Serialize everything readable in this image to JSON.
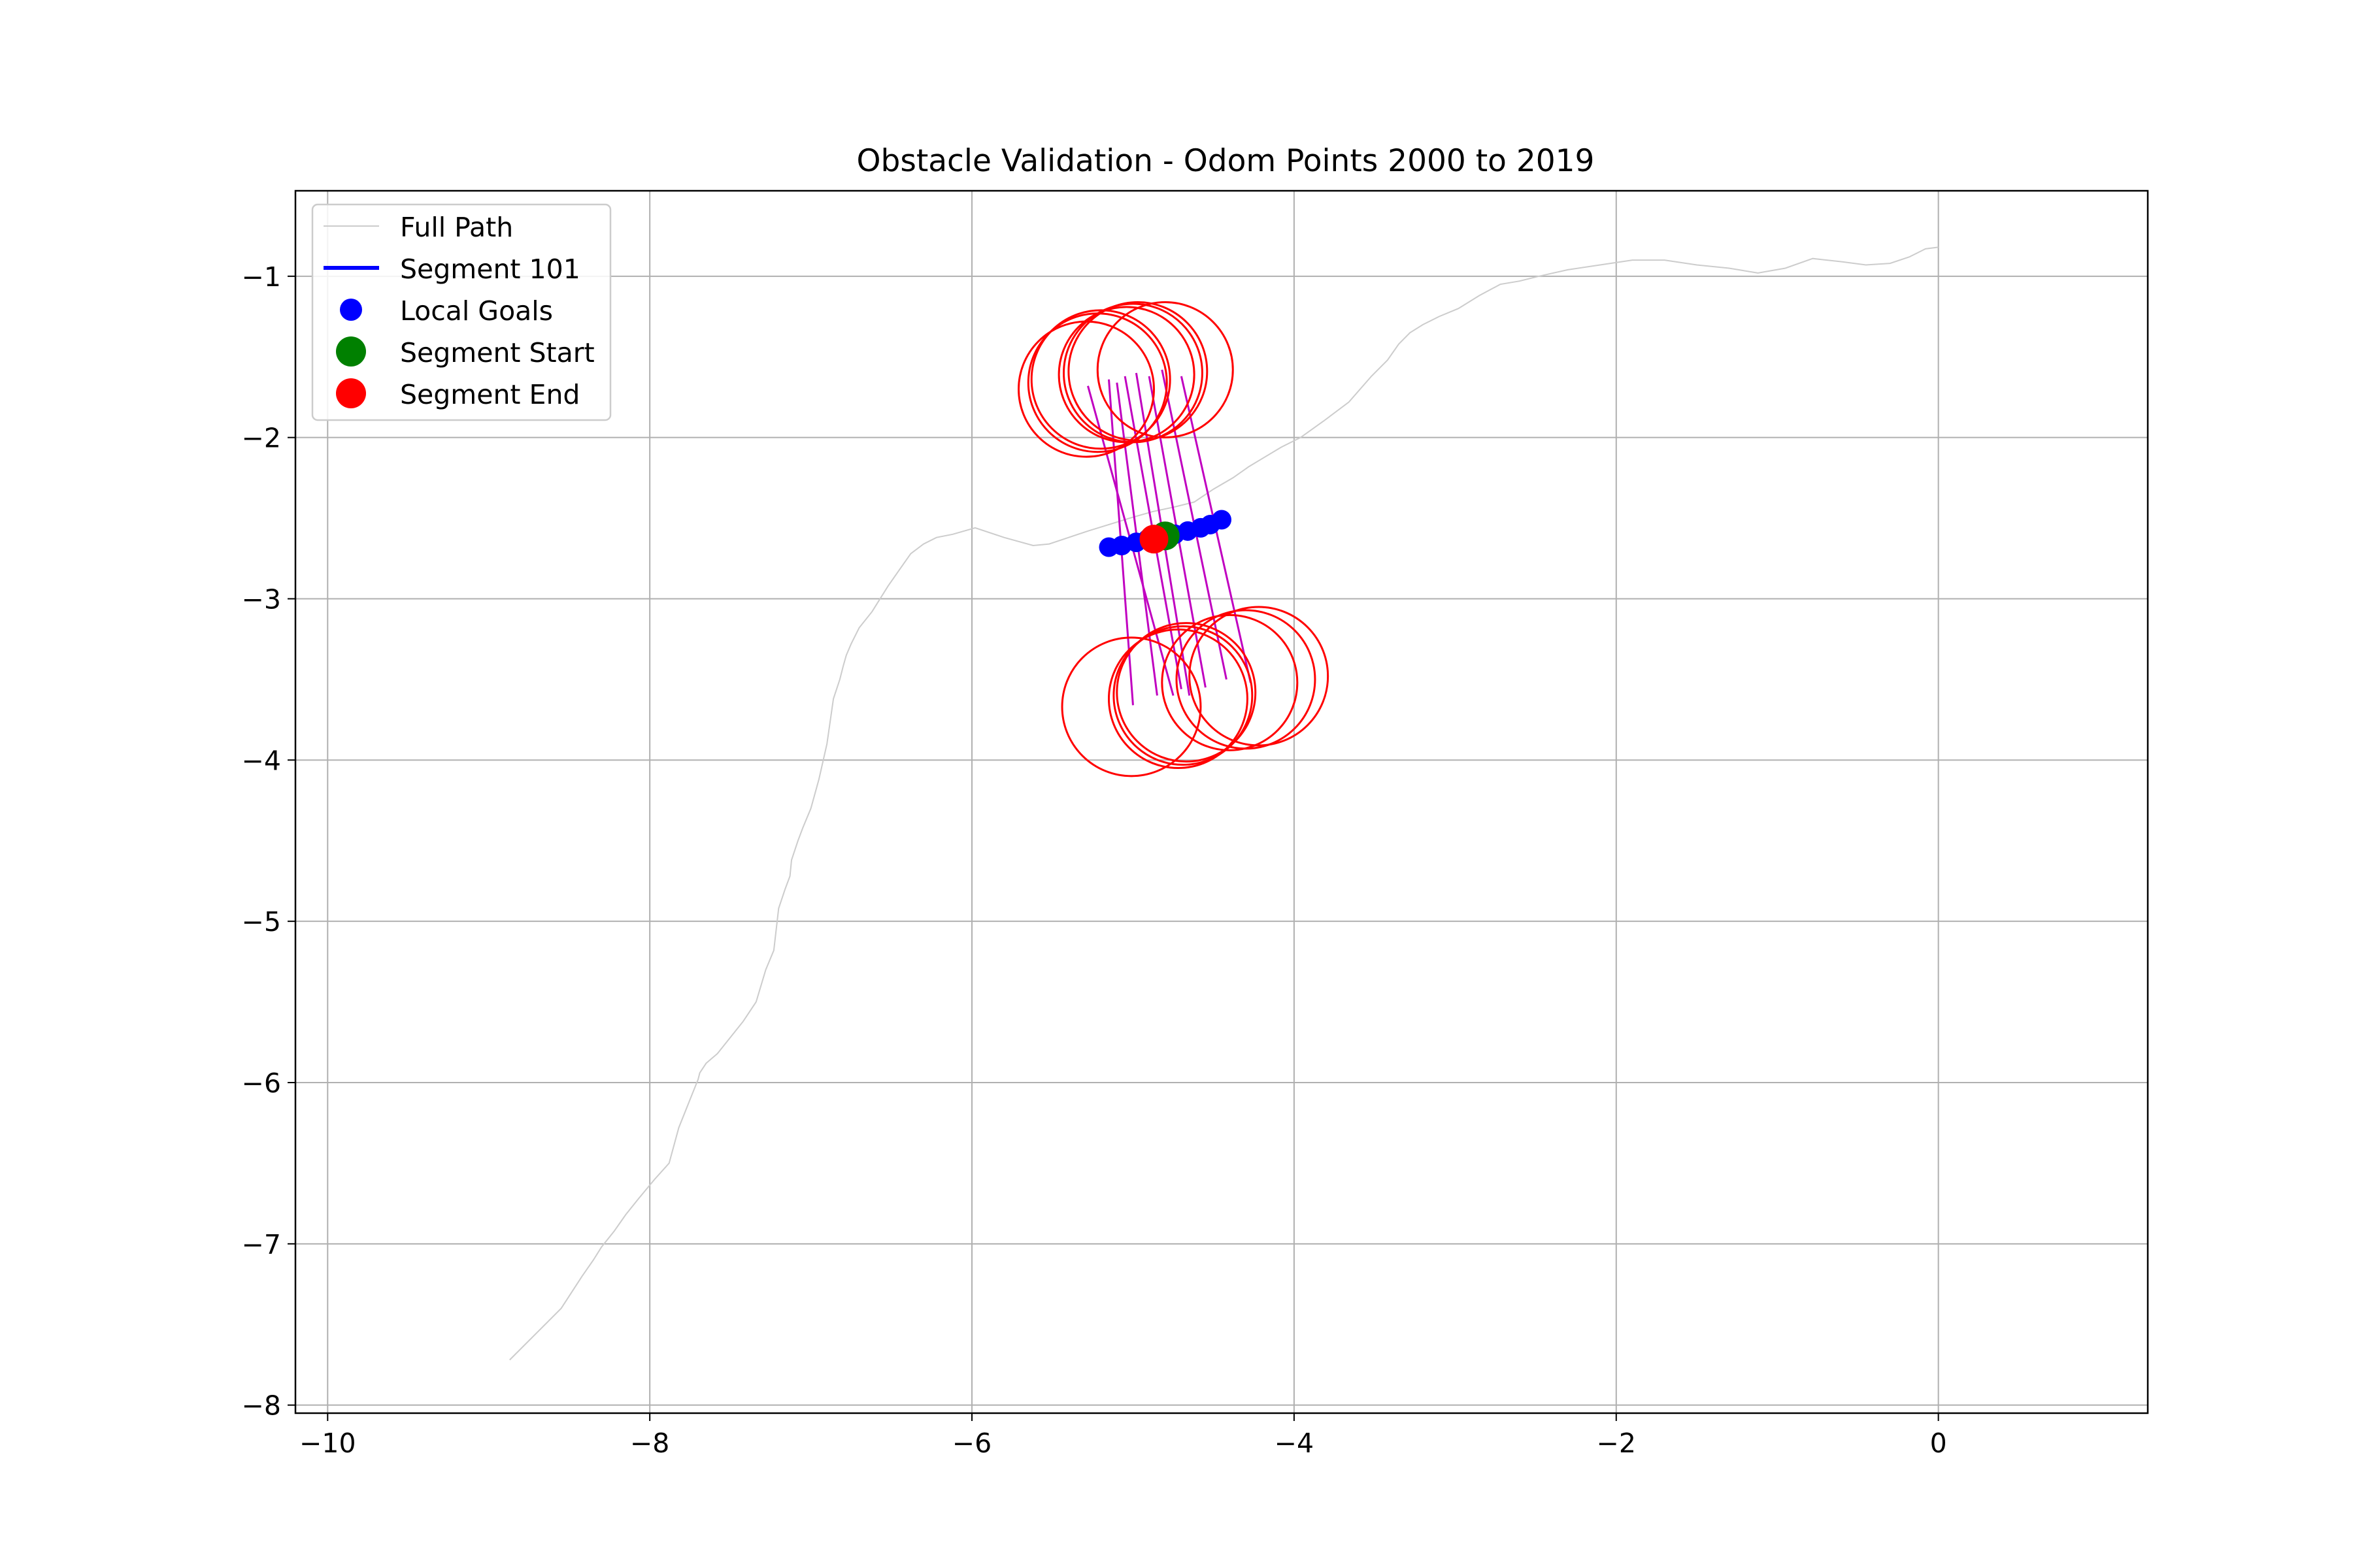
{
  "chart_data": {
    "type": "scatter",
    "title": "Obstacle Validation - Odom Points 2000 to 2019",
    "xlabel": "",
    "ylabel": "",
    "xlim": [
      -10.2,
      1.3
    ],
    "ylim": [
      -8.05,
      -0.47
    ],
    "xticks": [
      -10,
      -8,
      -6,
      -4,
      -2,
      0
    ],
    "yticks": [
      -1,
      -2,
      -3,
      -4,
      -5,
      -6,
      -7,
      -8
    ],
    "grid": true,
    "legend_position": "top-left",
    "legend": [
      {
        "label": "Full Path",
        "kind": "line",
        "color": "#cccccc"
      },
      {
        "label": "Segment 101",
        "kind": "line",
        "color": "#0000ff"
      },
      {
        "label": "Local Goals",
        "kind": "marker",
        "color": "#0000ff"
      },
      {
        "label": "Segment Start",
        "kind": "marker",
        "color": "#008000"
      },
      {
        "label": "Segment End",
        "kind": "marker",
        "color": "#ff0000"
      }
    ],
    "full_path": {
      "name": "Full Path",
      "color": "#cccccc",
      "x": [
        -8.87,
        -8.7,
        -8.55,
        -8.42,
        -8.35,
        -8.3,
        -8.22,
        -8.15,
        -8.07,
        -7.97,
        -7.88,
        -7.82,
        -7.74,
        -7.7,
        -7.69,
        -7.65,
        -7.58,
        -7.5,
        -7.42,
        -7.34,
        -7.28,
        -7.23,
        -7.2,
        -7.16,
        -7.13,
        -7.12,
        -7.08,
        -7.05,
        -7.0,
        -6.95,
        -6.9,
        -6.86,
        -6.82,
        -6.8,
        -6.78,
        -6.75,
        -6.7,
        -6.62,
        -6.52,
        -6.45,
        -6.38,
        -6.3,
        -6.22,
        -6.12,
        -5.98,
        -5.8,
        -5.62,
        -5.52,
        -5.4,
        -5.28,
        -5.15,
        -5.02,
        -4.88,
        -4.74,
        -4.62,
        -4.5,
        -4.38,
        -4.28,
        -4.18,
        -4.08,
        -3.96,
        -3.82,
        -3.66,
        -3.52,
        -3.42,
        -3.35,
        -3.28,
        -3.2,
        -3.1,
        -2.98,
        -2.85,
        -2.72,
        -2.6,
        -2.48,
        -2.3,
        -2.1,
        -1.9,
        -1.7,
        -1.5,
        -1.3,
        -1.12,
        -0.95,
        -0.78,
        -0.6,
        -0.45,
        -0.3,
        -0.18,
        -0.08,
        0.0
      ],
      "y": [
        -7.72,
        -7.55,
        -7.4,
        -7.2,
        -7.1,
        -7.02,
        -6.92,
        -6.82,
        -6.72,
        -6.6,
        -6.5,
        -6.28,
        -6.08,
        -5.98,
        -5.94,
        -5.88,
        -5.82,
        -5.72,
        -5.62,
        -5.5,
        -5.3,
        -5.18,
        -4.92,
        -4.8,
        -4.72,
        -4.62,
        -4.5,
        -4.42,
        -4.3,
        -4.12,
        -3.9,
        -3.62,
        -3.5,
        -3.42,
        -3.35,
        -3.28,
        -3.18,
        -3.08,
        -2.92,
        -2.82,
        -2.72,
        -2.66,
        -2.62,
        -2.6,
        -2.56,
        -2.62,
        -2.67,
        -2.66,
        -2.62,
        -2.58,
        -2.54,
        -2.5,
        -2.46,
        -2.43,
        -2.4,
        -2.32,
        -2.25,
        -2.18,
        -2.12,
        -2.06,
        -2.0,
        -1.9,
        -1.78,
        -1.62,
        -1.52,
        -1.42,
        -1.35,
        -1.3,
        -1.25,
        -1.2,
        -1.12,
        -1.05,
        -1.03,
        -1.0,
        -0.96,
        -0.93,
        -0.9,
        -0.9,
        -0.93,
        -0.95,
        -0.98,
        -0.95,
        -0.89,
        -0.91,
        -0.93,
        -0.92,
        -0.88,
        -0.83,
        -0.82
      ]
    },
    "segment": {
      "name": "Segment 101",
      "color": "#0000ff",
      "x": [
        -5.15,
        -5.08,
        -5.0,
        -4.93,
        -4.87,
        -4.82,
        -4.72,
        -4.66,
        -4.58,
        -4.52,
        -4.45
      ],
      "y": [
        -2.68,
        -2.67,
        -2.65,
        -2.63,
        -2.62,
        -2.61,
        -2.59,
        -2.57,
        -2.55,
        -2.53,
        -2.51
      ]
    },
    "local_goals": {
      "name": "Local Goals",
      "color": "#0000ff",
      "x": [
        -5.15,
        -5.07,
        -4.98,
        -4.91,
        -4.85,
        -4.8,
        -4.74,
        -4.66,
        -4.58,
        -4.52,
        -4.45
      ],
      "y": [
        -2.68,
        -2.67,
        -2.65,
        -2.63,
        -2.62,
        -2.61,
        -2.6,
        -2.58,
        -2.56,
        -2.54,
        -2.51
      ]
    },
    "segment_start": {
      "name": "Segment Start",
      "color": "#008000",
      "x": -4.8,
      "y": -2.61
    },
    "segment_end": {
      "name": "Segment End",
      "color": "#ff0000",
      "x": -4.87,
      "y": -2.63
    },
    "obstacle_circles": {
      "color": "#ff0000",
      "items": [
        {
          "cx": -5.29,
          "cy": -1.7,
          "r": 0.42
        },
        {
          "cx": -5.22,
          "cy": -1.66,
          "r": 0.43
        },
        {
          "cx": -5.2,
          "cy": -1.64,
          "r": 0.43
        },
        {
          "cx": -5.04,
          "cy": -1.61,
          "r": 0.42
        },
        {
          "cx": -5.0,
          "cy": -1.6,
          "r": 0.43
        },
        {
          "cx": -4.97,
          "cy": -1.59,
          "r": 0.43
        },
        {
          "cx": -4.8,
          "cy": -1.58,
          "r": 0.42
        },
        {
          "cx": -5.01,
          "cy": -3.67,
          "r": 0.43
        },
        {
          "cx": -4.72,
          "cy": -3.62,
          "r": 0.43
        },
        {
          "cx": -4.69,
          "cy": -3.6,
          "r": 0.43
        },
        {
          "cx": -4.67,
          "cy": -3.58,
          "r": 0.43
        },
        {
          "cx": -4.4,
          "cy": -3.52,
          "r": 0.42
        },
        {
          "cx": -4.3,
          "cy": -3.5,
          "r": 0.43
        },
        {
          "cx": -4.22,
          "cy": -3.48,
          "r": 0.43
        }
      ]
    },
    "rays": {
      "color": "#c000c0",
      "items": [
        {
          "x1": -5.28,
          "y1": -1.68,
          "x2": -4.75,
          "y2": -3.6
        },
        {
          "x1": -5.15,
          "y1": -1.64,
          "x2": -5.0,
          "y2": -3.66
        },
        {
          "x1": -5.05,
          "y1": -1.62,
          "x2": -4.7,
          "y2": -3.56
        },
        {
          "x1": -4.98,
          "y1": -1.6,
          "x2": -4.65,
          "y2": -3.6
        },
        {
          "x1": -4.9,
          "y1": -1.62,
          "x2": -4.55,
          "y2": -3.55
        },
        {
          "x1": -4.82,
          "y1": -1.58,
          "x2": -4.42,
          "y2": -3.5
        },
        {
          "x1": -4.7,
          "y1": -1.62,
          "x2": -4.27,
          "y2": -3.52
        },
        {
          "x1": -5.1,
          "y1": -1.66,
          "x2": -4.85,
          "y2": -3.6
        }
      ]
    }
  }
}
